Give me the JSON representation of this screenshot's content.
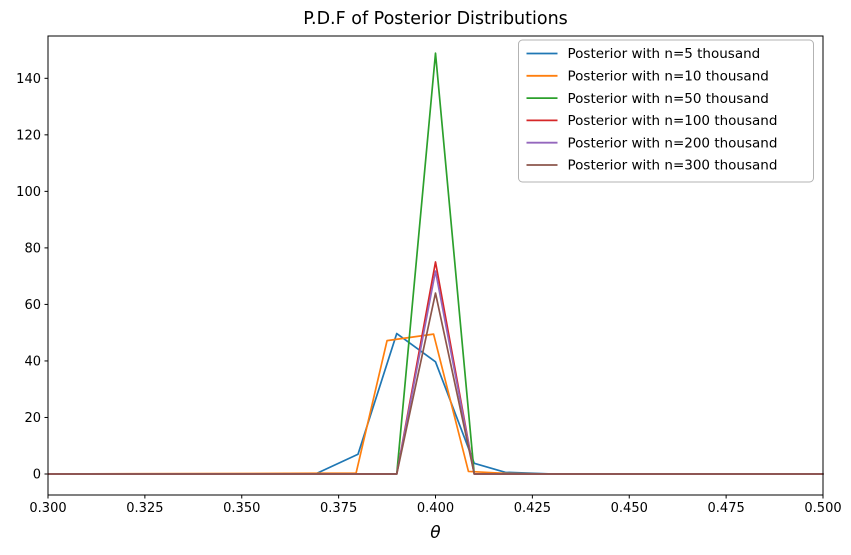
{
  "title": "P.D.F of Posterior Distributions",
  "chart_data": {
    "type": "line",
    "title": "P.D.F of Posterior Distributions",
    "xlabel": "θ",
    "ylabel": "",
    "xlim": [
      0.3,
      0.5
    ],
    "ylim": [
      -7.43,
      154.97
    ],
    "grid": false,
    "legend_position": "upper right",
    "xticks": {
      "values": [
        0.3,
        0.325,
        0.35,
        0.375,
        0.4,
        0.425,
        0.45,
        0.475,
        0.5
      ],
      "labels": [
        "0.300",
        "0.325",
        "0.350",
        "0.375",
        "0.400",
        "0.425",
        "0.450",
        "0.475",
        "0.500"
      ]
    },
    "yticks": {
      "values": [
        0,
        20,
        40,
        60,
        80,
        100,
        120,
        140
      ],
      "labels": [
        "0",
        "20",
        "40",
        "60",
        "80",
        "100",
        "120",
        "140"
      ]
    },
    "series": [
      {
        "name": "Posterior with n=5 thousand",
        "color": "#1f77b4",
        "points": [
          [
            0.3,
            0
          ],
          [
            0.369,
            0
          ],
          [
            0.38,
            7.0
          ],
          [
            0.39,
            49.7
          ],
          [
            0.4,
            39.7
          ],
          [
            0.41,
            3.8
          ],
          [
            0.418,
            0.6
          ],
          [
            0.43,
            0
          ],
          [
            0.5,
            0
          ]
        ]
      },
      {
        "name": "Posterior with n=10 thousand",
        "color": "#ff7f0e",
        "points": [
          [
            0.3,
            0
          ],
          [
            0.3795,
            0.3
          ],
          [
            0.3875,
            47.2
          ],
          [
            0.3995,
            49.5
          ],
          [
            0.4085,
            0.9
          ],
          [
            0.4185,
            0.2
          ],
          [
            0.43,
            0
          ],
          [
            0.5,
            0
          ]
        ]
      },
      {
        "name": "Posterior with n=50 thousand",
        "color": "#2ca02c",
        "points": [
          [
            0.3,
            0
          ],
          [
            0.39,
            0
          ],
          [
            0.4,
            148.9
          ],
          [
            0.41,
            0
          ],
          [
            0.5,
            0
          ]
        ]
      },
      {
        "name": "Posterior with n=100 thousand",
        "color": "#d62728",
        "points": [
          [
            0.3,
            0
          ],
          [
            0.39,
            0
          ],
          [
            0.4,
            75.0
          ],
          [
            0.41,
            0
          ],
          [
            0.5,
            0
          ]
        ]
      },
      {
        "name": "Posterior with n=200 thousand",
        "color": "#9467bd",
        "points": [
          [
            0.3,
            0
          ],
          [
            0.39,
            0
          ],
          [
            0.4,
            71.8
          ],
          [
            0.41,
            0
          ],
          [
            0.5,
            0
          ]
        ]
      },
      {
        "name": "Posterior with n=300 thousand",
        "color": "#8c564b",
        "points": [
          [
            0.3,
            0
          ],
          [
            0.39,
            0
          ],
          [
            0.4,
            64.0
          ],
          [
            0.41,
            0
          ],
          [
            0.5,
            0
          ]
        ]
      }
    ],
    "axis_color": "#000000",
    "legend_border_color": "#b3b3b3",
    "legend_background": "#ffffff"
  }
}
